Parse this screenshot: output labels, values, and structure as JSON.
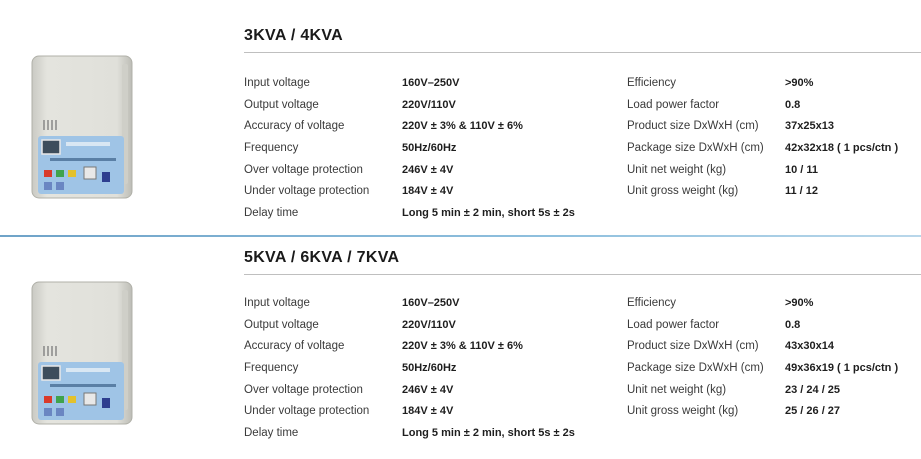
{
  "sections": [
    {
      "title": "3KVA / 4KVA",
      "left_specs": [
        {
          "label": "Input voltage",
          "value": "160V–250V"
        },
        {
          "label": "Output voltage",
          "value": "220V/110V"
        },
        {
          "label": "Accuracy of voltage",
          "value": "220V ±  3% & 110V  ±  6%"
        },
        {
          "label": "Frequency",
          "value": "50Hz/60Hz"
        },
        {
          "label": "Over voltage protection",
          "value": "246V  ±  4V"
        },
        {
          "label": "Under voltage protection",
          "value": "184V  ±  4V"
        },
        {
          "label": "Delay time",
          "value": "Long 5 min  ±  2 min, short 5s  ±  2s"
        }
      ],
      "right_specs": [
        {
          "label": "Efficiency",
          "value": ">90%"
        },
        {
          "label": "Load power factor",
          "value": "0.8"
        },
        {
          "label": "Product size DxWxH (cm)",
          "value": "37x25x13"
        },
        {
          "label": "Package size DxWxH (cm)",
          "value": "42x32x18 ( 1 pcs/ctn )"
        },
        {
          "label": "Unit net weight (kg)",
          "value": "10 / 11"
        },
        {
          "label": "Unit gross weight (kg)",
          "value": "11 / 12"
        }
      ]
    },
    {
      "title": "5KVA / 6KVA / 7KVA",
      "left_specs": [
        {
          "label": "Input voltage",
          "value": "160V–250V"
        },
        {
          "label": "Output voltage",
          "value": "220V/110V"
        },
        {
          "label": "Accuracy of voltage",
          "value": "220V ±  3% & 110V  ±  6%"
        },
        {
          "label": "Frequency",
          "value": "50Hz/60Hz"
        },
        {
          "label": "Over voltage protection",
          "value": "246V  ±  4V"
        },
        {
          "label": "Under voltage protection",
          "value": "184V  ±  4V"
        },
        {
          "label": "Delay time",
          "value": "Long 5 min  ±  2 min, short 5s  ±  2s"
        }
      ],
      "right_specs": [
        {
          "label": "Efficiency",
          "value": ">90%"
        },
        {
          "label": "Load power factor",
          "value": "0.8"
        },
        {
          "label": "Product size DxWxH (cm)",
          "value": "43x30x14"
        },
        {
          "label": "Package size DxWxH (cm)",
          "value": "49x36x19 ( 1 pcs/ctn )"
        },
        {
          "label": "Unit net weight (kg)",
          "value": "23 / 24 / 25"
        },
        {
          "label": "Unit gross weight (kg)",
          "value": "25 / 26 / 27"
        }
      ]
    }
  ],
  "colors": {
    "divider": "#8fc0de",
    "rule": "#bfbfbf",
    "device_body": "#dcdcd6",
    "device_panel": "#9fc4e6"
  }
}
